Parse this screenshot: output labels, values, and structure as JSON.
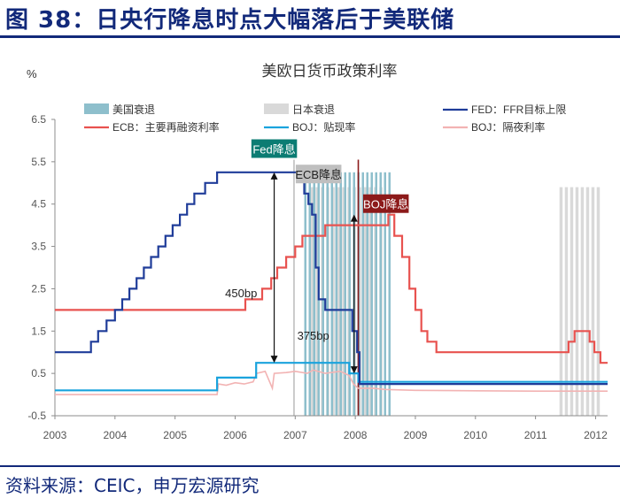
{
  "figure_title": "图 38：日央行降息时点大幅落后于美联储",
  "source": "资料来源：CEIC，申万宏源研究",
  "chart_data": {
    "type": "line",
    "title": "美欧日货币政策利率",
    "ylabel": "%",
    "ylim": [
      -0.5,
      6.5
    ],
    "yticks": [
      -0.5,
      0.5,
      1.5,
      2.5,
      3.5,
      4.5,
      5.5,
      6.5
    ],
    "xlim": [
      2003.0,
      2012.2
    ],
    "xticks": [
      2003,
      2004,
      2005,
      2006,
      2007,
      2008,
      2009,
      2010,
      2011,
      2012
    ],
    "legend": [
      {
        "key": "us_rec",
        "label": "美国衰退",
        "kind": "band",
        "color": "#8ebfcc"
      },
      {
        "key": "jp_rec",
        "label": "日本衰退",
        "kind": "band",
        "color": "#d9d9d9"
      },
      {
        "key": "fed",
        "label": "FED：FFR目标上限",
        "kind": "line",
        "color": "#1f3c99"
      },
      {
        "key": "ecb",
        "label": "ECB：主要再融资利率",
        "kind": "line",
        "color": "#e8524f"
      },
      {
        "key": "boj_disc",
        "label": "BOJ：贴现率",
        "kind": "line",
        "color": "#1aa3dd"
      },
      {
        "key": "boj_call",
        "label": "BOJ：隔夜利率",
        "kind": "line",
        "color": "#f2b3b3"
      }
    ],
    "recessions": [
      {
        "key": "jp_rec",
        "x0": 2007.25,
        "x1": 2008.45,
        "color": "#d9d9d9",
        "stripe": true
      },
      {
        "key": "us_rec",
        "x0": 2007.15,
        "x1": 2008.62,
        "color": "#8ebfcc",
        "stripe": true
      },
      {
        "key": "jp_rec",
        "x0": 2011.4,
        "x1": 2012.05,
        "color": "#d9d9d9",
        "stripe": true
      }
    ],
    "series": [
      {
        "key": "fed",
        "color": "#1f3c99",
        "step": true,
        "points": [
          [
            2003.0,
            1.0
          ],
          [
            2003.5,
            1.0
          ],
          [
            2003.6,
            1.25
          ],
          [
            2003.72,
            1.5
          ],
          [
            2003.86,
            1.75
          ],
          [
            2004.0,
            2.0
          ],
          [
            2004.12,
            2.25
          ],
          [
            2004.24,
            2.5
          ],
          [
            2004.36,
            2.75
          ],
          [
            2004.48,
            3.0
          ],
          [
            2004.6,
            3.25
          ],
          [
            2004.72,
            3.5
          ],
          [
            2004.84,
            3.75
          ],
          [
            2004.96,
            4.0
          ],
          [
            2005.08,
            4.25
          ],
          [
            2005.2,
            4.5
          ],
          [
            2005.32,
            4.75
          ],
          [
            2005.5,
            5.0
          ],
          [
            2005.7,
            5.25
          ],
          [
            2007.0,
            5.25
          ],
          [
            2007.15,
            4.75
          ],
          [
            2007.22,
            4.5
          ],
          [
            2007.28,
            4.25
          ],
          [
            2007.34,
            3.0
          ],
          [
            2007.39,
            2.25
          ],
          [
            2007.5,
            2.0
          ],
          [
            2007.95,
            1.5
          ],
          [
            2008.03,
            1.0
          ],
          [
            2008.07,
            0.25
          ],
          [
            2012.2,
            0.25
          ]
        ]
      },
      {
        "key": "ecb",
        "color": "#e8524f",
        "step": true,
        "points": [
          [
            2003.0,
            2.0
          ],
          [
            2005.92,
            2.0
          ],
          [
            2006.17,
            2.25
          ],
          [
            2006.45,
            2.5
          ],
          [
            2006.6,
            2.75
          ],
          [
            2006.7,
            3.0
          ],
          [
            2006.85,
            3.25
          ],
          [
            2007.0,
            3.5
          ],
          [
            2007.12,
            3.75
          ],
          [
            2007.5,
            4.0
          ],
          [
            2007.6,
            4.0
          ],
          [
            2008.5,
            4.0
          ],
          [
            2008.55,
            4.25
          ],
          [
            2008.65,
            3.75
          ],
          [
            2008.78,
            3.25
          ],
          [
            2008.9,
            2.5
          ],
          [
            2009.0,
            2.0
          ],
          [
            2009.1,
            1.5
          ],
          [
            2009.2,
            1.25
          ],
          [
            2009.35,
            1.0
          ],
          [
            2011.3,
            1.0
          ],
          [
            2011.55,
            1.25
          ],
          [
            2011.65,
            1.5
          ],
          [
            2011.9,
            1.25
          ],
          [
            2011.98,
            1.0
          ],
          [
            2012.08,
            0.75
          ],
          [
            2012.2,
            0.75
          ]
        ]
      },
      {
        "key": "boj_disc",
        "color": "#1aa3dd",
        "step": true,
        "points": [
          [
            2003.0,
            0.1
          ],
          [
            2005.65,
            0.1
          ],
          [
            2005.7,
            0.4
          ],
          [
            2006.3,
            0.4
          ],
          [
            2006.35,
            0.75
          ],
          [
            2007.85,
            0.75
          ],
          [
            2007.9,
            0.5
          ],
          [
            2008.05,
            0.3
          ],
          [
            2012.2,
            0.3
          ]
        ]
      },
      {
        "key": "boj_call",
        "color": "#f2b3b3",
        "step": false,
        "points": [
          [
            2003.0,
            0.0
          ],
          [
            2005.7,
            0.0
          ],
          [
            2005.72,
            0.25
          ],
          [
            2005.85,
            0.22
          ],
          [
            2006.0,
            0.28
          ],
          [
            2006.15,
            0.25
          ],
          [
            2006.3,
            0.3
          ],
          [
            2006.36,
            0.5
          ],
          [
            2006.5,
            0.55
          ],
          [
            2006.62,
            0.15
          ],
          [
            2006.65,
            0.5
          ],
          [
            2006.85,
            0.52
          ],
          [
            2007.0,
            0.55
          ],
          [
            2007.2,
            0.5
          ],
          [
            2007.3,
            0.58
          ],
          [
            2007.5,
            0.5
          ],
          [
            2007.75,
            0.55
          ],
          [
            2007.9,
            0.45
          ],
          [
            2007.97,
            0.25
          ],
          [
            2008.05,
            0.15
          ],
          [
            2008.3,
            0.15
          ],
          [
            2008.5,
            0.12
          ],
          [
            2009.0,
            0.1
          ],
          [
            2010.0,
            0.09
          ],
          [
            2011.0,
            0.08
          ],
          [
            2012.2,
            0.08
          ]
        ]
      }
    ],
    "annotations": [
      {
        "key": "fed_cut",
        "label": "Fed降息",
        "x": 2006.65,
        "y": 5.8,
        "bg": "#0b7c73",
        "fg": "#ffffff"
      },
      {
        "key": "ecb_cut",
        "label": "ECB降息",
        "x": 2007.7,
        "y": 5.2,
        "bg": "#bfbfbf",
        "fg": "#222222"
      },
      {
        "key": "boj_cut",
        "label": "BOJ降息",
        "x": 2008.13,
        "y": 4.5,
        "bg": "#8c1a1a",
        "fg": "#ffffff"
      },
      {
        "key": "gap450",
        "label": "450bp",
        "x": 2006.1,
        "y": 2.4
      },
      {
        "key": "gap375",
        "label": "375bp",
        "x": 2007.3,
        "y": 1.4
      }
    ],
    "arrows": [
      {
        "x": 2006.65,
        "y0": 5.25,
        "y1": 0.75
      },
      {
        "x": 2007.98,
        "y0": 4.25,
        "y1": 0.5
      }
    ],
    "vlines": [
      {
        "x": 2006.98,
        "color": "#bfbfbf"
      },
      {
        "x": 2008.05,
        "color": "#8c1a1a"
      }
    ]
  }
}
